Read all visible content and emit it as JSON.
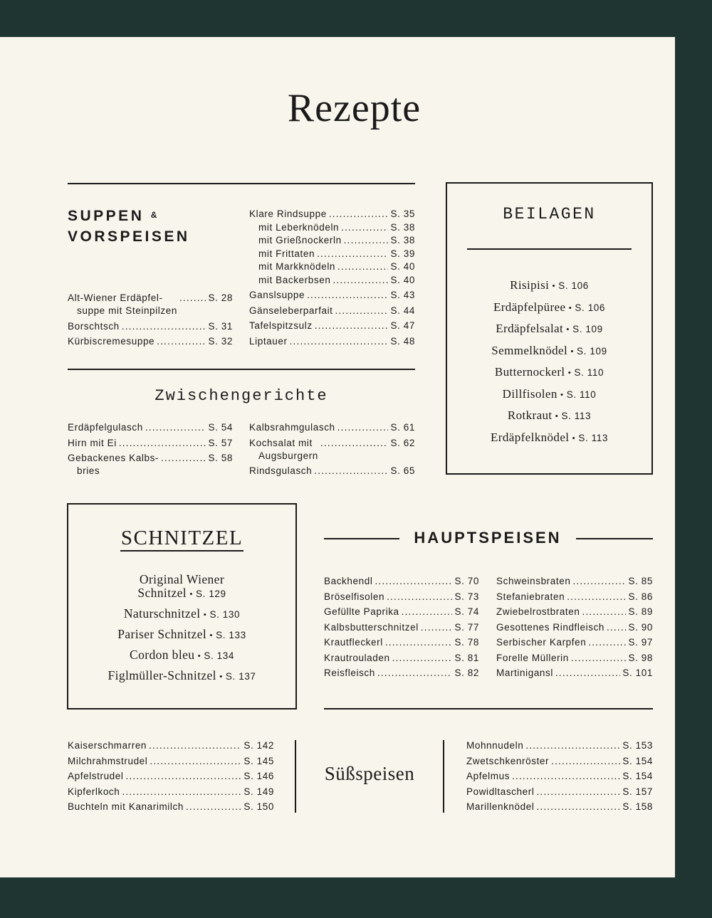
{
  "title": "Rezepte",
  "suppen": {
    "heading_line1": "SUPPEN",
    "heading_amp": "&",
    "heading_line2": "VORSPEISEN",
    "left": [
      {
        "label": "Alt-Wiener Erdäpfel-",
        "cont": "suppe mit Steinpilzen",
        "page": "S. 28"
      },
      {
        "label": "Borschtsch",
        "page": "S. 31"
      },
      {
        "label": "Kürbiscremesuppe",
        "page": "S. 32"
      }
    ],
    "right_group": [
      {
        "label": "Klare Rindsuppe",
        "page": "S. 35"
      },
      {
        "label": "mit Leberknödeln",
        "page": "S. 38"
      },
      {
        "label": "mit Grießnockerln",
        "page": "S. 38"
      },
      {
        "label": "mit Frittaten",
        "page": "S. 39"
      },
      {
        "label": "mit Markknödeln",
        "page": "S. 40"
      },
      {
        "label": "mit Backerbsen",
        "page": "S. 40"
      }
    ],
    "right": [
      {
        "label": "Ganslsuppe",
        "page": "S. 43"
      },
      {
        "label": "Gänseleberparfait",
        "page": "S. 44"
      },
      {
        "label": "Tafelspitzsulz",
        "page": "S. 47"
      },
      {
        "label": "Liptauer",
        "page": "S. 48"
      }
    ]
  },
  "zwischen": {
    "heading": "Zwischengerichte",
    "left": [
      {
        "label": "Erdäpfelgulasch",
        "page": "S. 54"
      },
      {
        "label": "Hirn mit Ei",
        "page": "S. 57"
      },
      {
        "label": "Gebackenes Kalbs-",
        "cont": "bries",
        "page": "S. 58"
      }
    ],
    "right": [
      {
        "label": "Kalbsrahmgulasch",
        "page": "S. 61"
      },
      {
        "label": "Kochsalat mit",
        "cont": "Augsburgern",
        "page": "S. 62"
      },
      {
        "label": "Rindsgulasch",
        "page": "S. 65"
      }
    ]
  },
  "beilagen": {
    "heading": "BEILAGEN",
    "items": [
      {
        "label": "Risipisi",
        "page": "S. 106"
      },
      {
        "label": "Erdäpfelpüree",
        "page": "S. 106"
      },
      {
        "label": "Erdäpfelsalat",
        "page": "S. 109"
      },
      {
        "label": "Semmelknödel",
        "page": "S. 109"
      },
      {
        "label": "Butternockerl",
        "page": "S. 110"
      },
      {
        "label": "Dillfisolen",
        "page": "S. 110"
      },
      {
        "label": "Rotkraut",
        "page": "S. 113"
      },
      {
        "label": "Erdäpfelknödel",
        "page": "S. 113"
      }
    ]
  },
  "schnitzel": {
    "heading": "SCHNITZEL",
    "items": [
      {
        "label": "Original Wiener",
        "label2": "Schnitzel",
        "page": "S. 129"
      },
      {
        "label": "Naturschnitzel",
        "page": "S. 130"
      },
      {
        "label": "Pariser Schnitzel",
        "page": "S. 133"
      },
      {
        "label": "Cordon bleu",
        "page": "S. 134"
      },
      {
        "label": "Figlmüller-Schnitzel",
        "page": "S. 137"
      }
    ]
  },
  "haupt": {
    "heading": "HAUPTSPEISEN",
    "left": [
      {
        "label": "Backhendl",
        "page": "S. 70"
      },
      {
        "label": "Bröselfisolen",
        "page": "S. 73"
      },
      {
        "label": "Gefüllte Paprika",
        "page": "S. 74"
      },
      {
        "label": "Kalbsbutterschnitzel",
        "page": "S. 77"
      },
      {
        "label": "Krautfleckerl",
        "page": "S. 78"
      },
      {
        "label": "Krautrouladen",
        "page": "S. 81"
      },
      {
        "label": "Reisfleisch",
        "page": "S. 82"
      }
    ],
    "right": [
      {
        "label": "Schweinsbraten",
        "page": "S. 85"
      },
      {
        "label": "Stefaniebraten",
        "page": "S. 86"
      },
      {
        "label": "Zwiebelrostbraten",
        "page": "S. 89"
      },
      {
        "label": "Gesottenes Rindfleisch",
        "page": "S. 90"
      },
      {
        "label": "Serbischer Karpfen",
        "page": "S. 97"
      },
      {
        "label": "Forelle Müllerin",
        "page": "S. 98"
      },
      {
        "label": "Martinigansl",
        "page": "S. 101"
      }
    ]
  },
  "suess": {
    "heading": "Süßspeisen",
    "left": [
      {
        "label": "Kaiserschmarren",
        "page": "S. 142"
      },
      {
        "label": "Milchrahmstrudel",
        "page": "S. 145"
      },
      {
        "label": "Apfelstrudel",
        "page": "S. 146"
      },
      {
        "label": "Kipferlkoch",
        "page": "S. 149"
      },
      {
        "label": "Buchteln mit Kanarimilch",
        "page": "S. 150"
      }
    ],
    "right": [
      {
        "label": "Mohnnudeln",
        "page": "S. 153"
      },
      {
        "label": "Zwetschkenröster",
        "page": "S. 154"
      },
      {
        "label": "Apfelmus",
        "page": "S. 154"
      },
      {
        "label": "Powidltascherl",
        "page": "S. 157"
      },
      {
        "label": "Marillenknödel",
        "page": "S. 158"
      }
    ]
  }
}
